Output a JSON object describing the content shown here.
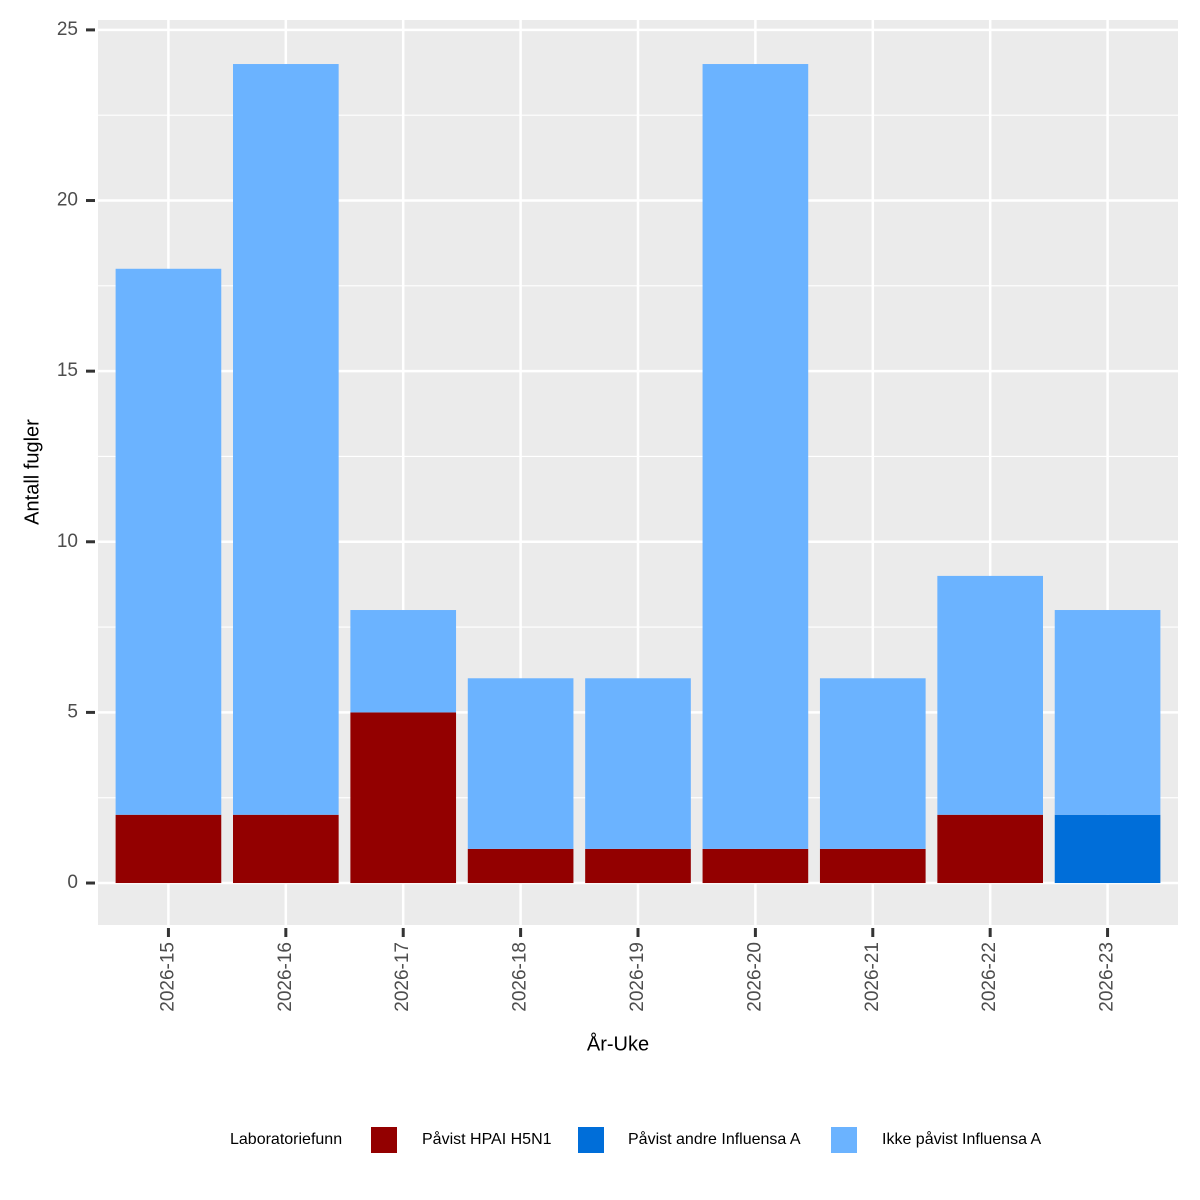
{
  "chart_data": {
    "type": "stacked_bar",
    "x_label": "År-Uke",
    "y_label": "Antall fugler",
    "legend_title": "Laboratoriefunn",
    "legend_position": "bottom",
    "categories": [
      "2026-15",
      "2026-16",
      "2026-17",
      "2026-18",
      "2026-19",
      "2026-20",
      "2026-21",
      "2026-22",
      "2026-23"
    ],
    "series": [
      {
        "name": "Påvist HPAI H5N1",
        "color": "#930000",
        "values": [
          2,
          2,
          5,
          1,
          1,
          1,
          1,
          2,
          0
        ]
      },
      {
        "name": "Påvist andre Influensa A",
        "color": "#006ED9",
        "values": [
          0,
          0,
          0,
          0,
          0,
          0,
          0,
          0,
          2
        ]
      },
      {
        "name": "Ikke påvist Influensa A",
        "color": "#6BB3FF",
        "values": [
          16,
          22,
          3,
          5,
          5,
          23,
          5,
          7,
          6
        ]
      }
    ],
    "ylim": [
      -1.23,
      25.29
    ],
    "yticks": [
      0,
      5,
      10,
      15,
      20,
      25
    ],
    "grid": true
  }
}
